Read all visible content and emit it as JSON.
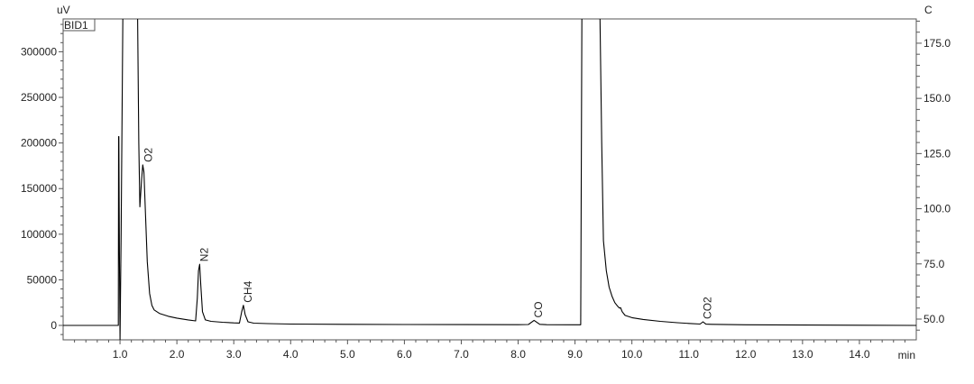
{
  "chart_data": {
    "type": "line",
    "title": "",
    "detector_label": "BID1",
    "xlabel": "min",
    "ylabel": "uV",
    "y2label": "C",
    "xlim": [
      0,
      15
    ],
    "ylim": [
      -15800,
      336000
    ],
    "y2lim": [
      40.6,
      186
    ],
    "xticks": [
      1.0,
      2.0,
      3.0,
      4.0,
      5.0,
      6.0,
      7.0,
      8.0,
      9.0,
      10.0,
      11.0,
      12.0,
      13.0,
      14.0
    ],
    "xtick_labels": [
      "1.0",
      "2.0",
      "3.0",
      "4.0",
      "5.0",
      "6.0",
      "7.0",
      "8.0",
      "9.0",
      "10.0",
      "11.0",
      "12.0",
      "13.0",
      "14.0"
    ],
    "yticks": [
      0,
      50000,
      100000,
      150000,
      200000,
      250000,
      300000
    ],
    "ytick_labels": [
      "0",
      "50000",
      "100000",
      "150000",
      "200000",
      "250000",
      "300000"
    ],
    "y2ticks": [
      50,
      75,
      100,
      125,
      150,
      175
    ],
    "y2tick_labels": [
      "50.0",
      "75.0",
      "100.0",
      "125.0",
      "150.0",
      "175.0"
    ],
    "grid": false,
    "line_color": "#000000",
    "series": [
      {
        "x": [
          0,
          0.97,
          0.975,
          0.98,
          0.99,
          1.0,
          1.02,
          1.05,
          1.07,
          1.3,
          1.31,
          1.33,
          1.35,
          1.38,
          1.4,
          1.42,
          1.45,
          1.48,
          1.52,
          1.56,
          1.6,
          1.7,
          1.85,
          2.0,
          2.2,
          2.33,
          2.36,
          2.38,
          2.4,
          2.42,
          2.45,
          2.5,
          2.6,
          2.8,
          3.0,
          3.1,
          3.14,
          3.17,
          3.2,
          3.25,
          3.35,
          3.6,
          4.0,
          5.0,
          6.0,
          7.0,
          8.0,
          8.18,
          8.28,
          8.38,
          8.5,
          9.0,
          9.1,
          9.12,
          9.14,
          9.42,
          9.44,
          9.47,
          9.5,
          9.55,
          9.6,
          9.65,
          9.7,
          9.75,
          9.78,
          9.8,
          9.83,
          9.88,
          10.0,
          10.2,
          10.5,
          10.8,
          11.0,
          11.2,
          11.25,
          11.3,
          11.4,
          11.7,
          12.0,
          13.0,
          14.0,
          15.0
        ],
        "y": [
          0,
          0,
          207000,
          207000,
          80000,
          -16000,
          100000,
          336000,
          400000,
          400000,
          336000,
          200000,
          130000,
          160000,
          176000,
          168000,
          120000,
          70000,
          35000,
          22000,
          17000,
          13000,
          10000,
          8000,
          6000,
          5000,
          30000,
          60000,
          67000,
          45000,
          15000,
          6000,
          4500,
          3500,
          2800,
          2600,
          15000,
          22000,
          12000,
          4000,
          2500,
          2000,
          1500,
          1200,
          1000,
          900,
          800,
          1000,
          5500,
          1200,
          800,
          700,
          700,
          336000,
          400000,
          400000,
          336000,
          200000,
          93000,
          60000,
          42000,
          32000,
          25000,
          21000,
          19000,
          19500,
          15000,
          11000,
          8500,
          6500,
          4500,
          3000,
          2200,
          1500,
          4000,
          1400,
          1200,
          900,
          700,
          400,
          200,
          0
        ]
      }
    ],
    "annotations": [
      {
        "text": "O2",
        "x": 1.42,
        "y": 176000
      },
      {
        "text": "N2",
        "x": 2.4,
        "y": 67000
      },
      {
        "text": "CH4",
        "x": 3.17,
        "y": 22000
      },
      {
        "text": "CO",
        "x": 8.28,
        "y": 5500
      },
      {
        "text": "CO2",
        "x": 11.25,
        "y": 4000
      }
    ]
  }
}
